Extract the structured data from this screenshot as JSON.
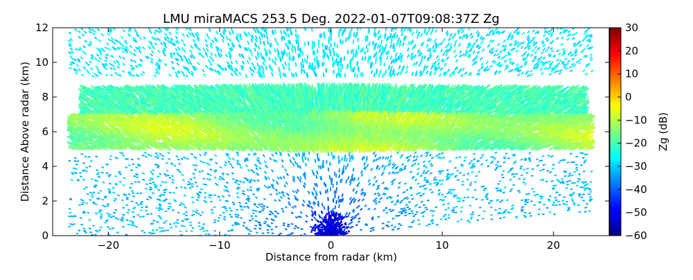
{
  "chart_data": {
    "type": "heatmap",
    "title": "LMU miraMACS 253.5 Deg. 2022-01-07T09:08:37Z  Zg",
    "xlabel": "Distance from radar (km)",
    "ylabel": "Distance Above radar  (km)",
    "xlim": [
      -25,
      25
    ],
    "ylim": [
      0,
      12
    ],
    "xticks": [
      "−20",
      "−10",
      "0",
      "10",
      "20"
    ],
    "xtick_values": [
      -20,
      -10,
      0,
      10,
      20
    ],
    "yticks": [
      "0",
      "2",
      "4",
      "6",
      "8",
      "10",
      "12"
    ],
    "ytick_values": [
      0,
      2,
      4,
      6,
      8,
      10,
      12
    ],
    "colorbar": {
      "label": "Zg (dB)",
      "range": [
        -60,
        30
      ],
      "colormap": "jet",
      "ticks": [
        "−60",
        "−50",
        "−40",
        "−30",
        "−20",
        "−10",
        "0",
        "10",
        "20",
        "30"
      ],
      "tick_values": [
        -60,
        -50,
        -40,
        -30,
        -20,
        -10,
        0,
        10,
        20,
        30
      ]
    },
    "scan": {
      "type": "RHI",
      "left_edge_km": -23.5,
      "right_edge_km": 23.5,
      "right_low_elevation_top_km": 1.4
    },
    "layers": [
      {
        "name": "clear-air noise above cloud",
        "z_bottom_km": 9.2,
        "z_top_km": 12,
        "zg_db": -28
      },
      {
        "name": "cloud layer upper",
        "z_bottom_km": 7.0,
        "z_top_km": 8.6,
        "zg_db": -20
      },
      {
        "name": "cloud layer core",
        "z_bottom_km": 5.0,
        "z_top_km": 7.0,
        "zg_db": -13
      },
      {
        "name": "noise below cloud",
        "z_bottom_km": 0,
        "z_top_km": 4.8,
        "zg_db": -32
      },
      {
        "name": "near-radar noise",
        "center_km": 0,
        "height_km": 1.5,
        "zg_db": -52
      }
    ]
  }
}
